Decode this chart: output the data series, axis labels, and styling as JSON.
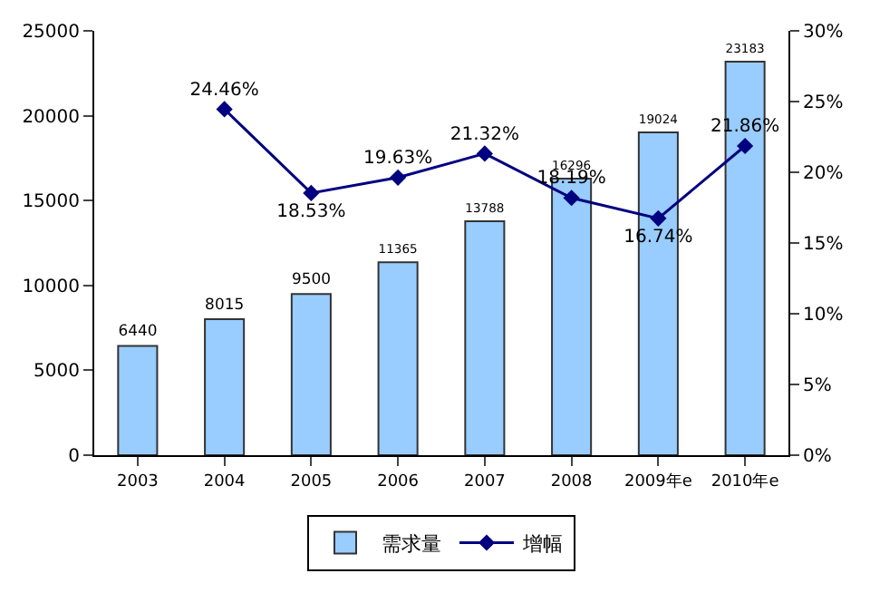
{
  "chart_data": {
    "type": "bar",
    "categories": [
      "2003",
      "2004",
      "2005",
      "2006",
      "2007",
      "2008",
      "2009年e",
      "2010年e"
    ],
    "series": [
      {
        "name": "需求量",
        "color": "#99ccff",
        "values": [
          6440,
          8015,
          9500,
          11365,
          13788,
          16296,
          19024,
          23183
        ]
      },
      {
        "name": "增幅",
        "type": "line",
        "axis": "y2",
        "color": "#000080",
        "marker": "diamond",
        "values": [
          null,
          24.46,
          18.53,
          19.63,
          21.32,
          18.19,
          16.74,
          21.86
        ],
        "value_labels": [
          null,
          "24.46%",
          "18.53%",
          "19.63%",
          "21.32%",
          "18.19%",
          "16.74%",
          "21.86%"
        ]
      }
    ],
    "data_labels": true,
    "ylim": [
      0,
      25000
    ],
    "yticks": [
      0,
      5000,
      10000,
      15000,
      20000,
      25000
    ],
    "y2lim": [
      0,
      30
    ],
    "y2ticks": [
      {
        "value": 0,
        "label": "0%"
      },
      {
        "value": 5,
        "label": "5%"
      },
      {
        "value": 10,
        "label": "10%"
      },
      {
        "value": 15,
        "label": "15%"
      },
      {
        "value": 20,
        "label": "20%"
      },
      {
        "value": 25,
        "label": "25%"
      },
      {
        "value": 30,
        "label": "30%"
      }
    ],
    "grid": false,
    "legend": "bottom"
  }
}
